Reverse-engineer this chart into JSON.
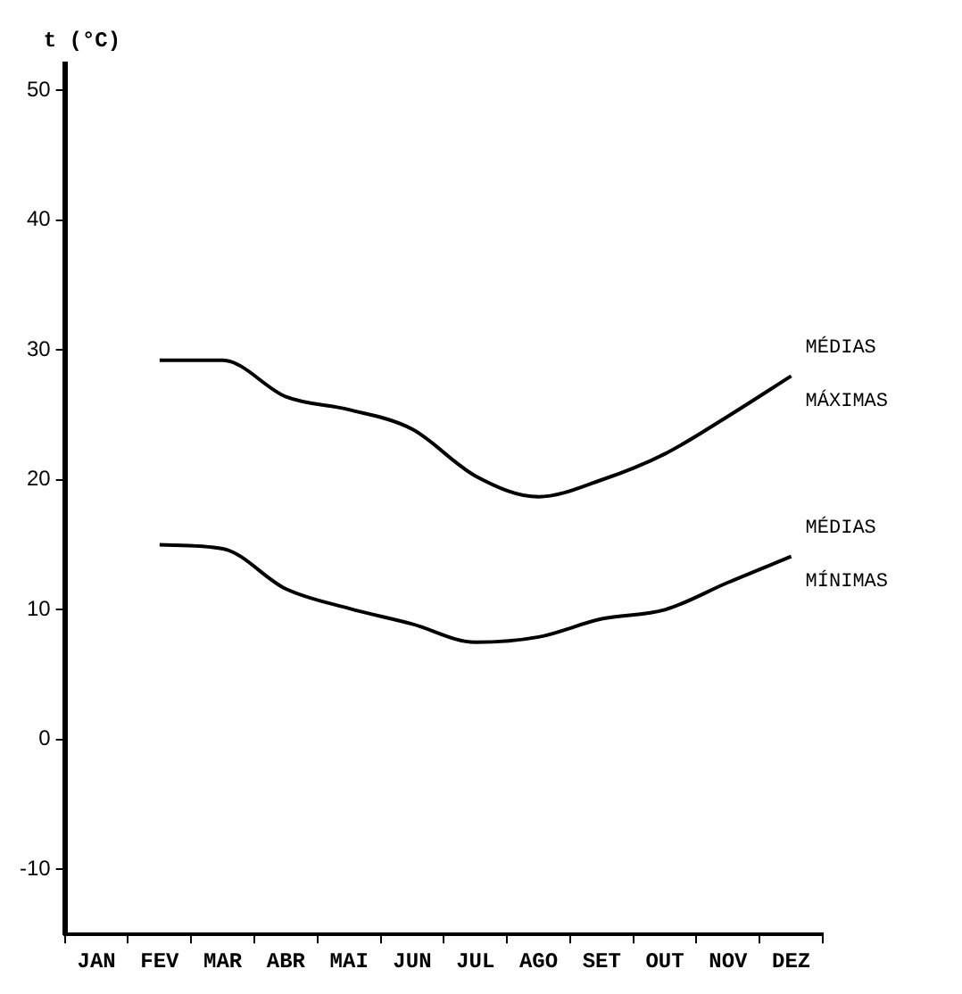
{
  "chart_data": {
    "type": "line",
    "ylabel": "t (°C)",
    "categories": [
      "JAN",
      "FEV",
      "MAR",
      "ABR",
      "MAI",
      "JUN",
      "JUL",
      "AGO",
      "SET",
      "OUT",
      "NOV",
      "DEZ"
    ],
    "series": [
      {
        "name": "MÉDIAS MÁXIMAS",
        "color": "#000000",
        "values": [
          null,
          29.2,
          29.2,
          26.4,
          25.4,
          23.9,
          20.3,
          18.7,
          20.0,
          22.0,
          24.9,
          28.0
        ]
      },
      {
        "name": "MÉDIAS MÍNIMAS",
        "color": "#000000",
        "values": [
          null,
          15.0,
          14.7,
          11.6,
          10.1,
          8.9,
          7.5,
          7.9,
          9.3,
          10.0,
          12.1,
          14.1
        ]
      }
    ],
    "ylim": [
      -15,
      52
    ],
    "yticks": [
      -10,
      0,
      10,
      20,
      30,
      40,
      50
    ],
    "grid": false,
    "legend": false,
    "marker": "none",
    "line_style": "solid"
  }
}
